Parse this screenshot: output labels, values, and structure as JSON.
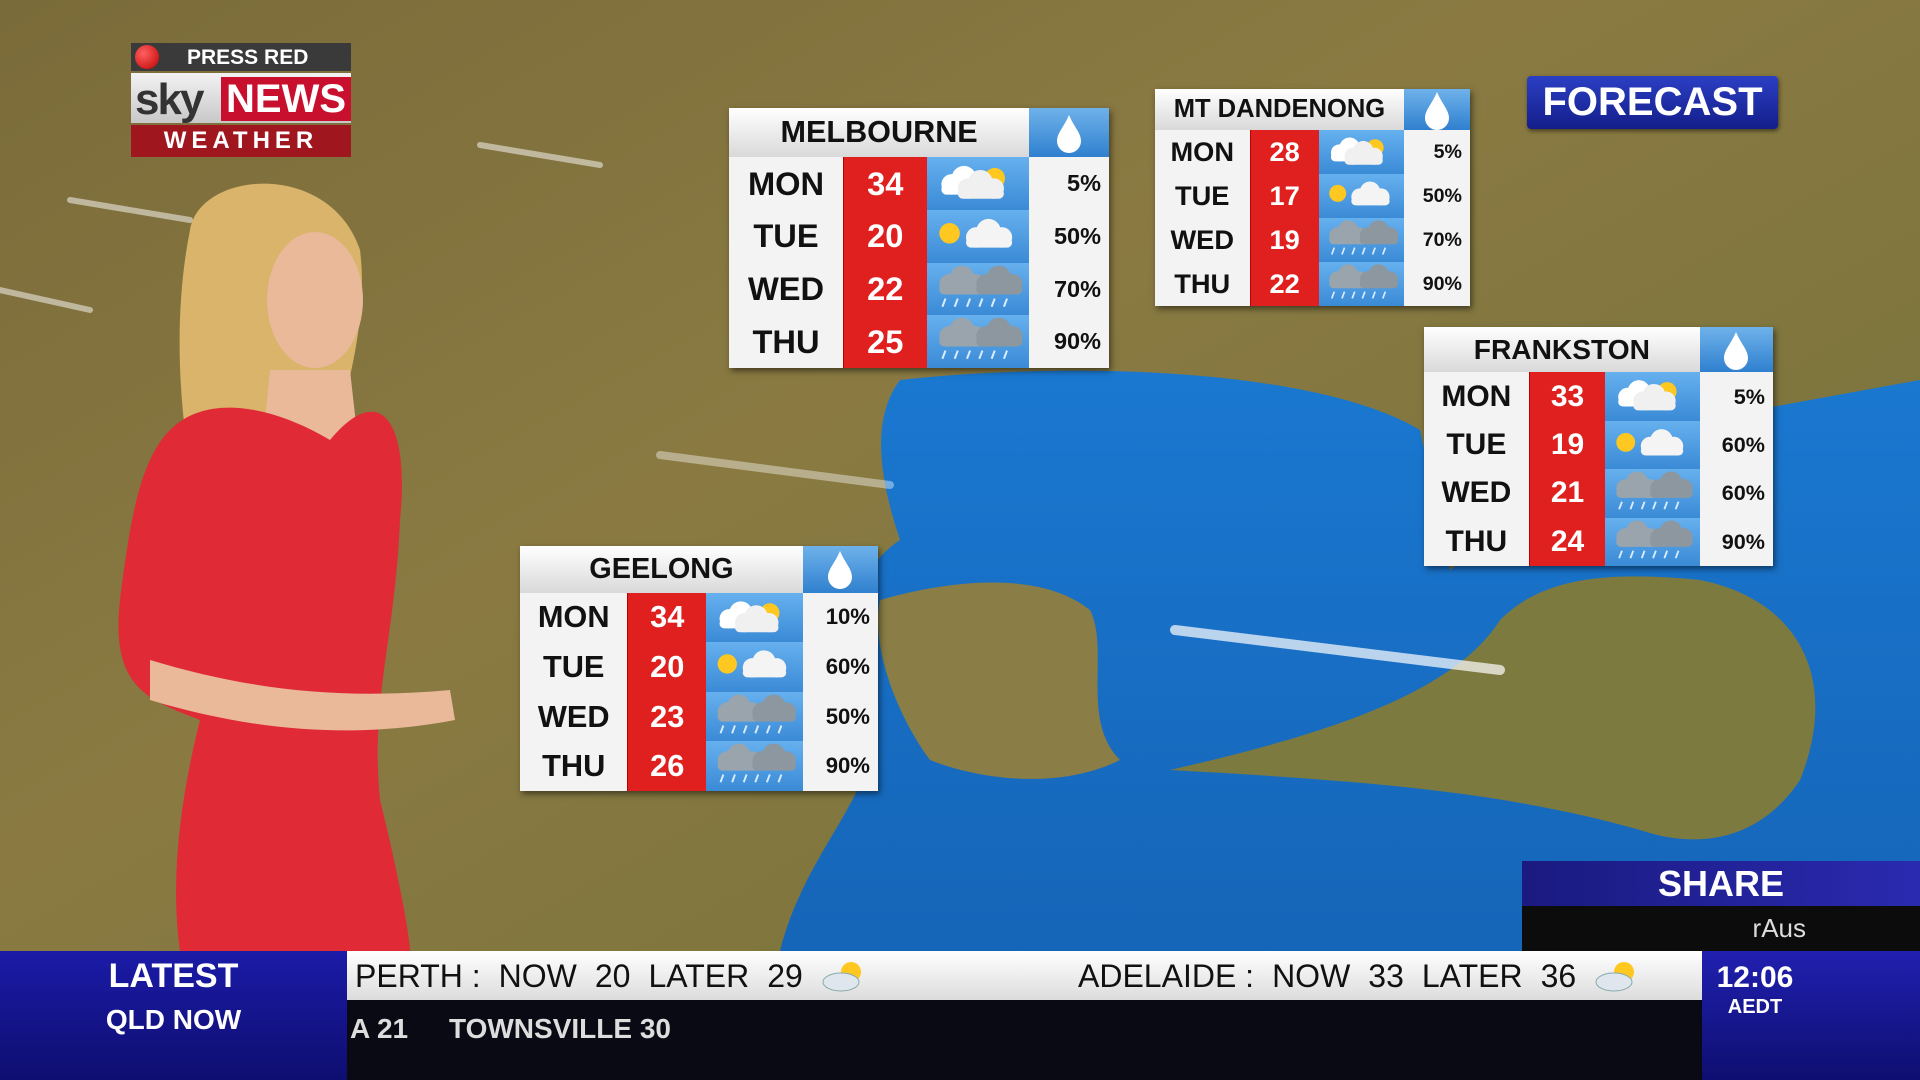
{
  "logo": {
    "press_red": "PRESS RED",
    "sky": "sky",
    "news": "NEWS",
    "weather": "WEATHER"
  },
  "forecast_label": "FORECAST",
  "panels": [
    {
      "city": "MELBOURNE",
      "days": [
        {
          "day": "MON",
          "temp": 34,
          "rain": "5%"
        },
        {
          "day": "TUE",
          "temp": 20,
          "rain": "50%"
        },
        {
          "day": "WED",
          "temp": 22,
          "rain": "70%"
        },
        {
          "day": "THU",
          "temp": 25,
          "rain": "90%"
        }
      ]
    },
    {
      "city": "MT DANDENONG",
      "days": [
        {
          "day": "MON",
          "temp": 28,
          "rain": "5%"
        },
        {
          "day": "TUE",
          "temp": 17,
          "rain": "50%"
        },
        {
          "day": "WED",
          "temp": 19,
          "rain": "70%"
        },
        {
          "day": "THU",
          "temp": 22,
          "rain": "90%"
        }
      ]
    },
    {
      "city": "FRANKSTON",
      "days": [
        {
          "day": "MON",
          "temp": 33,
          "rain": "5%"
        },
        {
          "day": "TUE",
          "temp": 19,
          "rain": "60%"
        },
        {
          "day": "WED",
          "temp": 21,
          "rain": "60%"
        },
        {
          "day": "THU",
          "temp": 24,
          "rain": "90%"
        }
      ]
    },
    {
      "city": "GEELONG",
      "days": [
        {
          "day": "MON",
          "temp": 34,
          "rain": "10%"
        },
        {
          "day": "TUE",
          "temp": 20,
          "rain": "60%"
        },
        {
          "day": "WED",
          "temp": 23,
          "rain": "50%"
        },
        {
          "day": "THU",
          "temp": 26,
          "rain": "90%"
        }
      ]
    }
  ],
  "share": {
    "label": "SHARE",
    "ticker": "rAus"
  },
  "ticker": {
    "latest": "LATEST",
    "region": "QLD NOW",
    "items": [
      {
        "city": "PERTH :",
        "now_label": "NOW",
        "now": 20,
        "later_label": "LATER",
        "later": 29
      },
      {
        "city": "ADELAIDE :",
        "now_label": "NOW",
        "now": 33,
        "later_label": "LATER",
        "later": 36
      }
    ],
    "scroll": [
      "A 21",
      "TOWNSVILLE 30"
    ]
  },
  "clock": {
    "time": "12:06",
    "zone": "AEDT"
  }
}
